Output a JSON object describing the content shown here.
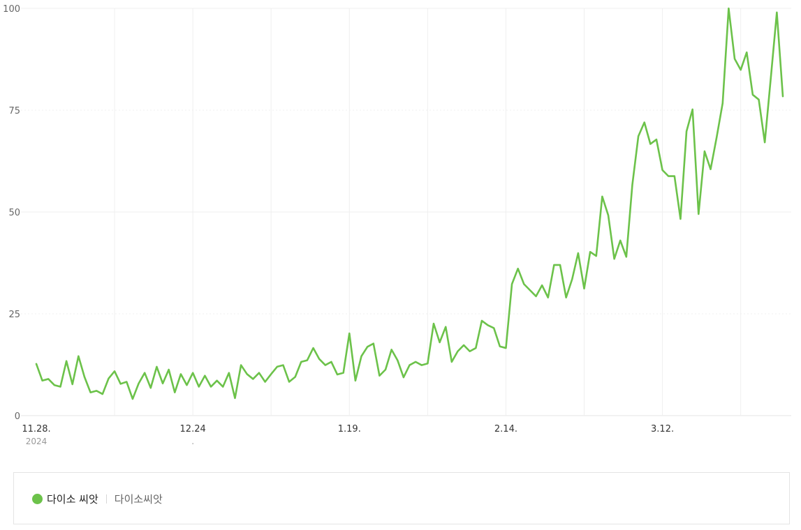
{
  "chart_data": {
    "type": "line",
    "ylim": [
      0,
      100
    ],
    "yticks": [
      "0",
      "25",
      "50",
      "75",
      "100"
    ],
    "xtick_labels": [
      {
        "index": 0,
        "label": "11.28.",
        "sub": "2024"
      },
      {
        "index": 26,
        "label": "12.24",
        "sub": "."
      },
      {
        "index": 52,
        "label": "1.19.",
        "sub": ""
      },
      {
        "index": 78,
        "label": "2.14.",
        "sub": ""
      },
      {
        "index": 104,
        "label": "3.12.",
        "sub": ""
      }
    ],
    "grid": true,
    "legend": "bottom",
    "color": "#6cc24a",
    "series": [
      {
        "name": "다이소 씨앗",
        "keywords": "다이소씨앗",
        "values": [
          12.7,
          8.6,
          9.0,
          7.5,
          7.1,
          13.4,
          7.7,
          14.6,
          9.5,
          5.7,
          6.1,
          5.3,
          9.1,
          10.9,
          7.8,
          8.3,
          4.1,
          7.9,
          10.5,
          6.8,
          12.0,
          7.9,
          11.3,
          5.7,
          10.2,
          7.5,
          10.5,
          7.1,
          9.8,
          7.1,
          8.6,
          7.1,
          10.5,
          4.3,
          12.4,
          10.2,
          9.0,
          10.5,
          8.3,
          10.2,
          12.0,
          12.4,
          8.3,
          9.5,
          13.2,
          13.6,
          16.6,
          13.9,
          12.4,
          13.2,
          10.1,
          10.5,
          20.2,
          8.6,
          14.6,
          16.9,
          17.7,
          9.8,
          11.3,
          16.2,
          13.6,
          9.4,
          12.4,
          13.2,
          12.4,
          12.8,
          22.6,
          18.0,
          21.8,
          13.2,
          15.8,
          17.3,
          15.8,
          16.6,
          23.3,
          22.2,
          21.5,
          17.0,
          16.6,
          32.3,
          36.1,
          32.3,
          30.8,
          29.3,
          32.0,
          29.0,
          37.0,
          37.0,
          29.0,
          33.5,
          39.9,
          31.2,
          40.2,
          39.2,
          53.8,
          49.2,
          38.5,
          43.0,
          39.0,
          56.7,
          68.6,
          72.0,
          66.7,
          67.8,
          60.3,
          58.8,
          58.8,
          48.3,
          69.8,
          75.2,
          49.5,
          64.9,
          60.5,
          68.3,
          76.7,
          100.0,
          87.6,
          84.9,
          89.2,
          78.8,
          77.6,
          67.1,
          82.9,
          99.0,
          78.4
        ]
      }
    ]
  }
}
